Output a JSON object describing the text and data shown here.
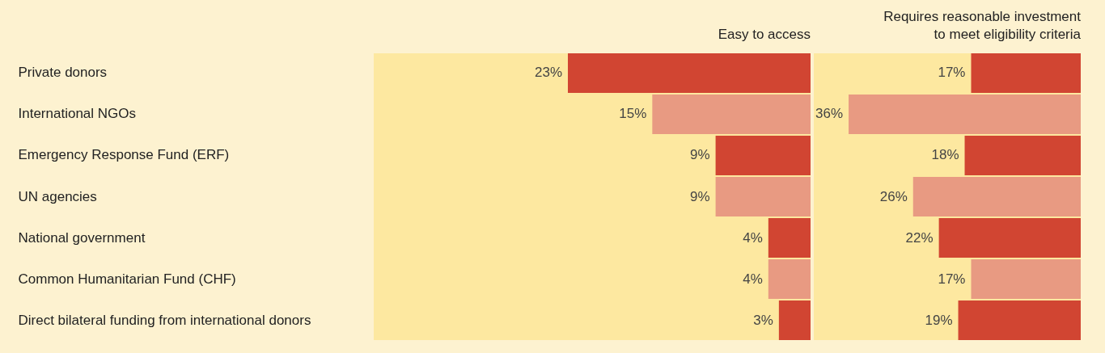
{
  "chart_data": [
    {
      "type": "bar",
      "orientation": "horizontal",
      "title": "Easy to access",
      "categories": [
        "Private donors",
        "International NGOs",
        "Emergency Response Fund (ERF)",
        "UN agencies",
        "National government",
        "Common Humanitarian Fund (CHF)",
        "Direct bilateral funding from international donors"
      ],
      "values": [
        23,
        15,
        9,
        9,
        4,
        4,
        3
      ],
      "value_labels": [
        "23%",
        "15%",
        "9%",
        "9%",
        "4%",
        "4%",
        "3%"
      ],
      "colors": [
        "#d14532",
        "#e89a82",
        "#d14532",
        "#e89a82",
        "#d14532",
        "#e89a82",
        "#d14532"
      ],
      "tick_labels": "y"
    },
    {
      "type": "bar",
      "orientation": "horizontal",
      "title": "Requires reasonable investment\nto meet eligibility criteria",
      "categories": [
        null,
        null,
        null,
        null,
        null,
        null,
        null
      ],
      "values": [
        17,
        36,
        18,
        26,
        22,
        17,
        19
      ],
      "value_labels": [
        "17%",
        "36%",
        "18%",
        "26%",
        "22%",
        "17%",
        "19%"
      ],
      "colors": [
        "#d14532",
        "#e89a82",
        "#d14532",
        "#e89a82",
        "#d14532",
        "#e89a82",
        "#d14532"
      ],
      "tick_labels": false
    }
  ]
}
